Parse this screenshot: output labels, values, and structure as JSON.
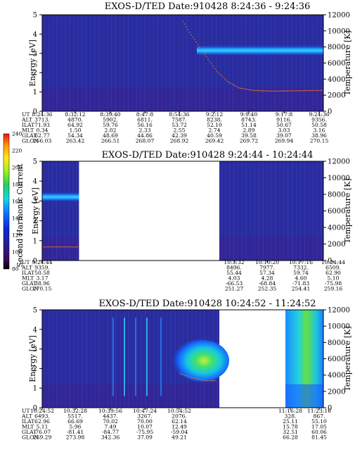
{
  "chart_data": {
    "type": "heatmap",
    "colorbar": {
      "label": "Second Harmonic Current",
      "ticks": [
        "240",
        "220",
        "200",
        "180",
        "160",
        "140",
        "120",
        "100",
        "80"
      ],
      "range": [
        80,
        240
      ]
    },
    "panels": [
      {
        "title": "EXOS-D/TED   Date:910428  8:24:36 - 9:24:36",
        "ylabel": "Energy [eV]",
        "y2label": "Temperature [K]",
        "ylim": [
          0,
          5
        ],
        "y2lim": [
          0,
          12000
        ],
        "yticks": [
          "0",
          "1",
          "2",
          "3",
          "4",
          "5"
        ],
        "y2ticks": [
          "0",
          "2000",
          "4000",
          "6000",
          "8000",
          "10000",
          "12000"
        ],
        "data_segments": [
          [
            0,
            1
          ]
        ],
        "band": {
          "x_start": 0.55,
          "energy_center": 3.15,
          "energy_halfwidth": 0.28
        },
        "temperature_trace": [
          [
            0.5,
            11200
          ],
          [
            0.53,
            9500
          ],
          [
            0.56,
            8000
          ],
          [
            0.59,
            6500
          ],
          [
            0.62,
            5000
          ],
          [
            0.66,
            3700
          ],
          [
            0.7,
            2900
          ],
          [
            0.75,
            2600
          ],
          [
            0.82,
            2500
          ],
          [
            0.9,
            2550
          ],
          [
            1.0,
            2600
          ]
        ],
        "ephemeris_labels": [
          "UT",
          "ALT",
          "ILAT",
          "MLT",
          "GLAT",
          "GLON"
        ],
        "ephemeris": [
          [
            "8:24:36",
            "3713.",
            "71.93",
            "0.34",
            "62.77",
            "256.03"
          ],
          [
            "8:32:12",
            "4870.",
            "64.92",
            "1.50",
            "54.34",
            "263.42"
          ],
          [
            "8:39:40",
            "5902.",
            "59.76",
            "2.02",
            "48.69",
            "266.51"
          ],
          [
            "8:47:8",
            "6811.",
            "56.16",
            "2.33",
            "44.86",
            "268.07"
          ],
          [
            "8:54:36",
            "7587.",
            "53.72",
            "2.55",
            "42.39",
            "268.92"
          ],
          [
            "9:2:12",
            "8238.",
            "52.10",
            "2.74",
            "40.59",
            "269.42"
          ],
          [
            "9:9:40",
            "8743.",
            "51.14",
            "2.89",
            "39.58",
            "269.72"
          ],
          [
            "9:17:8",
            "9116.",
            "50.67",
            "3.03",
            "39.07",
            "269.94"
          ],
          [
            "9:24:36",
            "9356.",
            "50.58",
            "3.16",
            "38.96",
            "270.15"
          ]
        ]
      },
      {
        "title": "EXOS-D/TED   Date:910428  9:24:44 - 10:24:44",
        "ylabel": "Energy [eV]",
        "y2label": "Temperature [K]",
        "ylim": [
          0,
          5
        ],
        "y2lim": [
          0,
          12000
        ],
        "yticks": [
          "0",
          "1",
          "2",
          "3",
          "4",
          "5"
        ],
        "y2ticks": [
          "0",
          "2000",
          "4000",
          "6000",
          "8000",
          "10000",
          "12000"
        ],
        "data_segments": [
          [
            0,
            0.131
          ],
          [
            0.63,
            1
          ]
        ],
        "band": {
          "x_start": 0,
          "x_end": 0.131,
          "energy_center": 3.2,
          "energy_halfwidth": 0.25
        },
        "temperature_trace": [
          [
            0.0,
            1650
          ],
          [
            0.131,
            1650
          ]
        ],
        "ephemeris_labels": [
          "UT",
          "ALT",
          "ILAT",
          "MLT",
          "GLAT",
          "GLON"
        ],
        "ephemeris": [
          [
            "9:24:44",
            "9359.",
            "50.58",
            "3.17",
            "38.96",
            "270.15"
          ],
          [
            "10:3:32",
            "8496.",
            "55.44",
            "4.03",
            "-66.53",
            "251.27"
          ],
          [
            "10:10:20",
            "7977.",
            "57.34",
            "4.28",
            "-68.84",
            "252.35"
          ],
          [
            "10:17:16",
            "7332.",
            "59.74",
            "4.60",
            "-71.83",
            "254.41"
          ],
          [
            "10:24:44",
            "6509.",
            "62.90",
            "5.10",
            "-75.98",
            "259.16"
          ]
        ]
      },
      {
        "title": "EXOS-D/TED   Date:910428  10:24:52 - 11:24:52",
        "ylabel": "Energy [eV]",
        "y2label": "Temperature [K]",
        "ylim": [
          0,
          5
        ],
        "y2lim": [
          0,
          12000
        ],
        "yticks": [
          "0",
          "1",
          "2",
          "3",
          "4",
          "5"
        ],
        "y2ticks": [
          "0",
          "2000",
          "4000",
          "6000",
          "8000",
          "10000",
          "12000"
        ],
        "data_segments": [
          [
            0,
            0.63
          ],
          [
            0.865,
            1
          ]
        ],
        "band": {
          "x_start": 0.47,
          "x_end": 0.63,
          "energy_center": 2.4,
          "energy_halfwidth": 0.6
        },
        "temperature_trace": [
          [
            0.49,
            4200
          ],
          [
            0.53,
            3700
          ],
          [
            0.57,
            3400
          ],
          [
            0.6,
            3300
          ],
          [
            0.62,
            3350
          ]
        ],
        "ephemeris_labels": [
          "UT",
          "ALT",
          "ILAT",
          "MLT",
          "GLAT",
          "GLON"
        ],
        "ephemeris": [
          [
            "10:24:52",
            "6493.",
            "62.96",
            "5.11",
            "-76.07",
            "259.29"
          ],
          [
            "10:32:28",
            "5517.",
            "66.69",
            "5.96",
            "-81.41",
            "273.98"
          ],
          [
            "10:39:56",
            "4437.",
            "70.02",
            "7.49",
            "-84.77",
            "342.36"
          ],
          [
            "10:47:24",
            "3267.",
            "70.00",
            "10.07",
            "-75.95",
            "37.09"
          ],
          [
            "10:54:52",
            "2076.",
            "62.14",
            "12.49",
            "-59.04",
            "49.21"
          ],
          [
            "11:16:28",
            "328.",
            "25.11",
            "15.78",
            "32.51",
            "66.28"
          ],
          [
            "11:23:16",
            "867.",
            "55.10",
            "17.05",
            "60.06",
            "81.45"
          ]
        ]
      }
    ]
  }
}
